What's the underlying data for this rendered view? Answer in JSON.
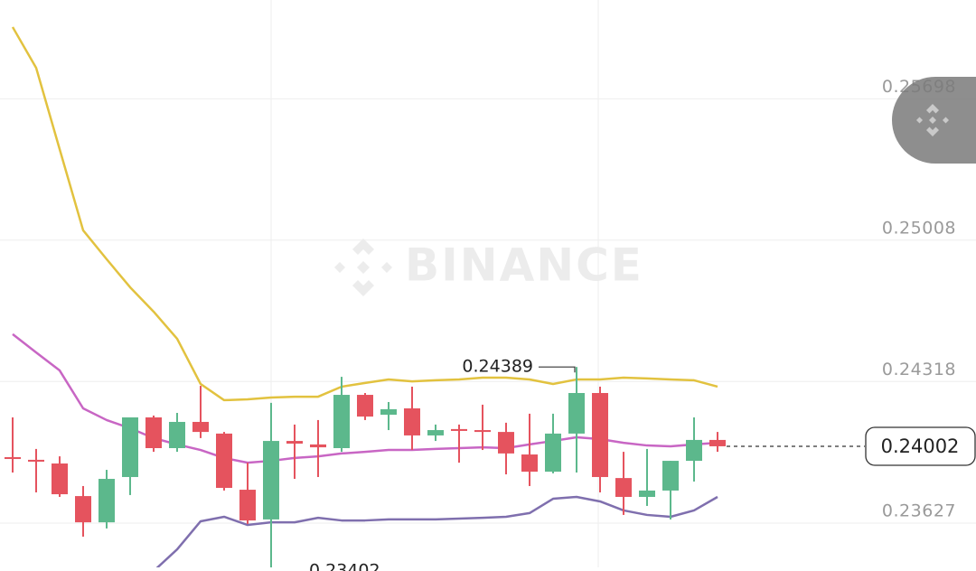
{
  "chart_data": {
    "type": "candlestick",
    "watermark": "BINANCE",
    "ylim": [
      0.23411,
      0.2618
    ],
    "yticks": [
      0.23627,
      0.24318,
      0.25008,
      0.25698
    ],
    "grid": true,
    "up_color": "#5cb88c",
    "down_color": "#e5535e",
    "open": [
      0.23949,
      0.23936,
      0.23918,
      0.23759,
      0.23631,
      0.23852,
      0.24143,
      0.23993,
      0.24121,
      0.24064,
      0.2379,
      0.23645,
      0.24028,
      0.24011,
      0.23993,
      0.24253,
      0.24156,
      0.24187,
      0.24055,
      0.24086,
      0.24081,
      0.24072,
      0.23962,
      0.23878,
      0.24064,
      0.24262,
      0.23847,
      0.23755,
      0.23786,
      0.23931,
      0.24033
    ],
    "close": [
      0.2394,
      0.23927,
      0.23768,
      0.23631,
      0.23843,
      0.24143,
      0.23993,
      0.24121,
      0.24072,
      0.23799,
      0.2364,
      0.24028,
      0.24015,
      0.23997,
      0.24253,
      0.24147,
      0.24183,
      0.24055,
      0.24081,
      0.24077,
      0.24072,
      0.23967,
      0.23878,
      0.24064,
      0.24262,
      0.23852,
      0.23755,
      0.23786,
      0.23931,
      0.24033,
      0.24002
    ],
    "high": [
      0.24143,
      0.23989,
      0.23953,
      0.23808,
      0.23887,
      0.24143,
      0.24152,
      0.24165,
      0.24297,
      0.24072,
      0.23922,
      0.24214,
      0.24108,
      0.2413,
      0.24341,
      0.24262,
      0.24218,
      0.24293,
      0.24108,
      0.24108,
      0.24205,
      0.24117,
      0.24161,
      0.24161,
      0.24389,
      0.24293,
      0.23975,
      0.23989,
      0.23931,
      0.24143,
      0.24072
    ],
    "low": [
      0.23874,
      0.23777,
      0.23755,
      0.23561,
      0.23601,
      0.23764,
      0.23975,
      0.23975,
      0.24042,
      0.23786,
      0.23623,
      0.23402,
      0.23843,
      0.23852,
      0.23975,
      0.2413,
      0.24081,
      0.23984,
      0.24028,
      0.23922,
      0.23984,
      0.23865,
      0.23808,
      0.2387,
      0.23874,
      0.23777,
      0.23667,
      0.23711,
      0.23645,
      0.2383,
      0.23975
    ],
    "lines": [
      {
        "color": "#e2c23f",
        "values": [
          0.26048,
          0.25849,
          0.25452,
          0.25056,
          0.24915,
          0.24778,
          0.24659,
          0.24527,
          0.24306,
          0.24227,
          0.24231,
          0.2424,
          0.24244,
          0.24244,
          0.24293,
          0.24311,
          0.24328,
          0.24319,
          0.24324,
          0.24328,
          0.24337,
          0.24337,
          0.24328,
          0.24306,
          0.24328,
          0.24328,
          0.24337,
          0.24333,
          0.24328,
          0.24324,
          0.24293
        ]
      },
      {
        "color": "#c866c4",
        "values": [
          0.24549,
          0.2446,
          0.24372,
          0.24187,
          0.2413,
          0.2409,
          0.24042,
          0.24011,
          0.23984,
          0.23945,
          0.23922,
          0.23931,
          0.23945,
          0.23953,
          0.23967,
          0.23975,
          0.23984,
          0.23984,
          0.23989,
          0.23993,
          0.23997,
          0.23993,
          0.24011,
          0.24028,
          0.24046,
          0.24037,
          0.24019,
          0.24006,
          0.24002,
          0.24011,
          0.24019
        ]
      },
      {
        "color": "#7f6fae",
        "values": [
          null,
          null,
          null,
          null,
          null,
          null,
          0.23393,
          0.23499,
          0.23636,
          0.23658,
          0.23618,
          0.23631,
          0.23631,
          0.23653,
          0.2364,
          0.2364,
          0.23645,
          0.23645,
          0.23645,
          0.23649,
          0.23653,
          0.23658,
          0.23676,
          0.23746,
          0.23755,
          0.23733,
          0.23689,
          0.23667,
          0.23658,
          0.23689,
          0.23755
        ]
      }
    ]
  }
}
